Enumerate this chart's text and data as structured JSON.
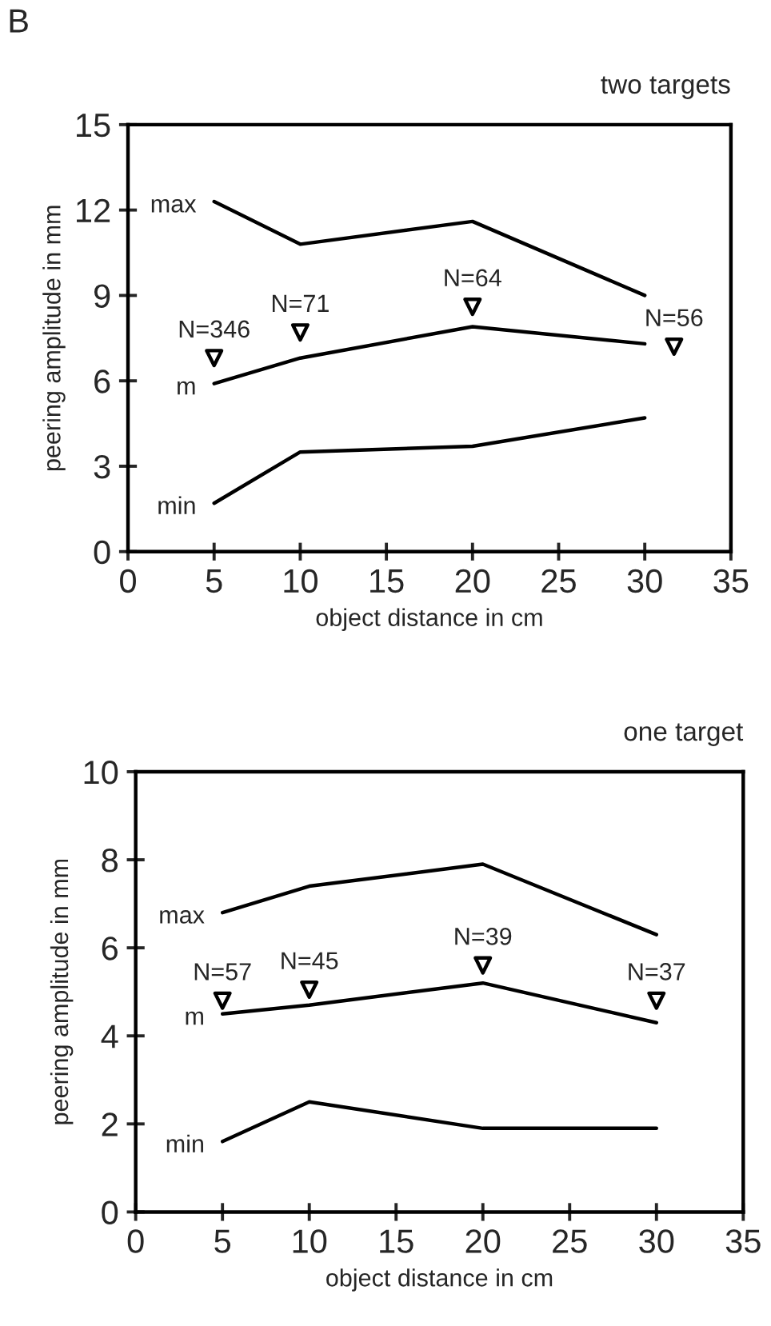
{
  "chart_data": [
    {
      "type": "line",
      "title": "two targets",
      "xlabel": "object distance in cm",
      "ylabel": "peering amplitude in mm",
      "xlim": [
        0,
        35
      ],
      "xticks": [
        0,
        5,
        10,
        15,
        20,
        25,
        30,
        35
      ],
      "ylim": [
        0,
        15
      ],
      "yticks": [
        0,
        3,
        6,
        9,
        12,
        15
      ],
      "grid": false,
      "legend": false,
      "series": [
        {
          "name": "max",
          "color": "#000000",
          "x": [
            5,
            10,
            20,
            30
          ],
          "values": [
            12.3,
            10.8,
            11.6,
            9.0
          ],
          "marker": "none"
        },
        {
          "name": "m",
          "color": "#000000",
          "x": [
            5,
            10,
            20,
            30
          ],
          "values": [
            5.9,
            6.8,
            7.9,
            7.3
          ],
          "marker": "none"
        },
        {
          "name": "min",
          "color": "#000000",
          "x": [
            5,
            10,
            20,
            30
          ],
          "values": [
            1.7,
            3.5,
            3.7,
            4.7
          ],
          "marker": "none"
        },
        {
          "type": "scatter",
          "color": "#000000",
          "x": [
            5,
            10,
            20,
            31.7
          ],
          "values": [
            6.8,
            7.7,
            8.6,
            7.2
          ],
          "marker": "triangle"
        }
      ],
      "annotations": [
        "B",
        {
          "text": "N=346",
          "x": 5,
          "y": 6.8
        },
        {
          "text": "N=71",
          "x": 10,
          "y": 7.7
        },
        {
          "text": "N=64",
          "x": 20,
          "y": 8.6
        },
        {
          "text": "N=56",
          "x": 31.7,
          "y": 7.2
        }
      ]
    },
    {
      "type": "line",
      "title": "one target",
      "xlabel": "object distance in cm",
      "ylabel": "peering amplitude in mm",
      "xlim": [
        0,
        35
      ],
      "xticks": [
        0,
        5,
        10,
        15,
        20,
        25,
        30,
        35
      ],
      "ylim": [
        0,
        10
      ],
      "yticks": [
        0,
        2,
        4,
        6,
        8,
        10
      ],
      "grid": false,
      "legend": false,
      "series": [
        {
          "name": "max",
          "color": "#000000",
          "x": [
            5,
            10,
            20,
            30
          ],
          "values": [
            6.8,
            7.4,
            7.9,
            6.3
          ],
          "marker": "none"
        },
        {
          "name": "m",
          "color": "#000000",
          "x": [
            5,
            10,
            20,
            30
          ],
          "values": [
            4.5,
            4.7,
            5.2,
            4.3
          ],
          "marker": "none"
        },
        {
          "name": "min",
          "color": "#000000",
          "x": [
            5,
            10,
            20,
            30
          ],
          "values": [
            1.6,
            2.5,
            1.9,
            1.9
          ],
          "marker": "none"
        },
        {
          "type": "scatter",
          "color": "#000000",
          "x": [
            5,
            10,
            20,
            30
          ],
          "values": [
            4.8,
            5.05,
            5.6,
            4.8
          ],
          "marker": "triangle"
        }
      ],
      "annotations": [
        {
          "text": "N=57",
          "x": 5,
          "y": 4.8
        },
        {
          "text": "N=45",
          "x": 10,
          "y": 5.05
        },
        {
          "text": "N=39",
          "x": 20,
          "y": 5.6
        },
        {
          "text": "N=37",
          "x": 30,
          "y": 4.8
        }
      ]
    }
  ]
}
